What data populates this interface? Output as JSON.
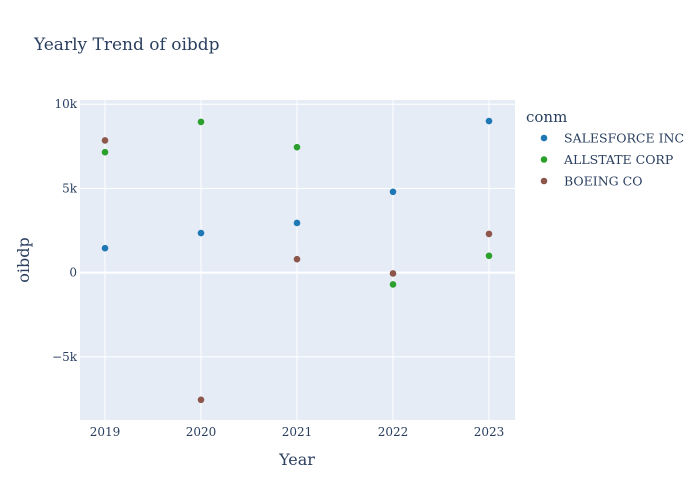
{
  "chart_data": {
    "type": "scatter",
    "title": "Yearly Trend of oibdp",
    "xlabel": "Year",
    "ylabel": "oibdp",
    "x": [
      2019,
      2020,
      2021,
      2022,
      2023
    ],
    "x_tick_labels": [
      "2019",
      "2020",
      "2021",
      "2022",
      "2023"
    ],
    "ylim": [
      -8750,
      10250
    ],
    "y_ticks": [
      -5000,
      0,
      5000,
      10000
    ],
    "y_tick_labels": [
      "−5k",
      "0",
      "5k",
      "10k"
    ],
    "grid": true,
    "legend": {
      "title": "conm",
      "placement": "right"
    },
    "series": [
      {
        "name": "SALESFORCE INC",
        "color": "#1f77b4",
        "values": [
          1450,
          2350,
          2950,
          4800,
          9000
        ]
      },
      {
        "name": "ALLSTATE CORP",
        "color": "#2ca02c",
        "values": [
          7150,
          8950,
          7450,
          -700,
          1000
        ]
      },
      {
        "name": "BOEING CO",
        "color": "#8c564b",
        "values": [
          7850,
          -7550,
          800,
          -50,
          2300
        ]
      }
    ],
    "colors": {
      "plot_bg": "#e5ecf6",
      "grid": "#ffffff",
      "text": "#2a3f5f"
    }
  }
}
